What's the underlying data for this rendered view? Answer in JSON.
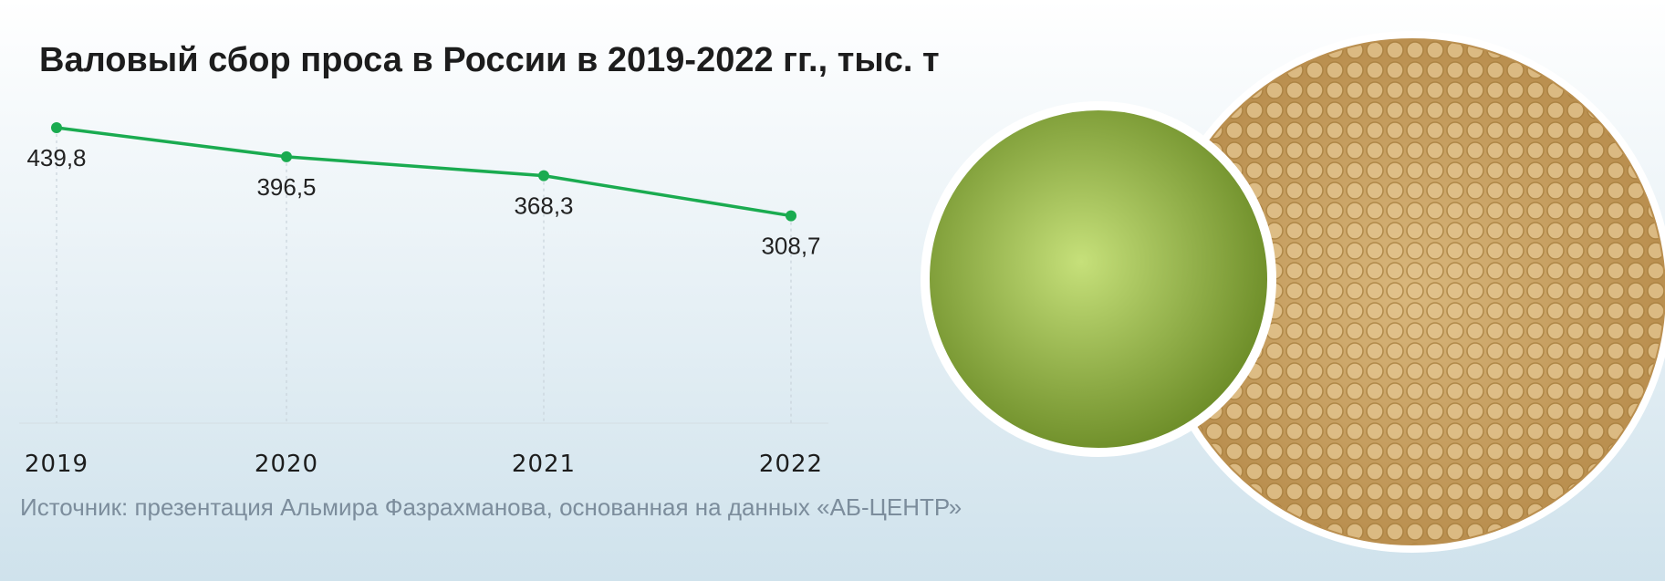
{
  "chart_data": {
    "type": "line",
    "title": "Валовый сбор проса в России в 2019-2022 гг., тыс. т",
    "categories": [
      "2019",
      "2020",
      "2021",
      "2022"
    ],
    "series": [
      {
        "name": null,
        "color": "#1aab50",
        "values": [
          439.8,
          396.5,
          368.3,
          308.7
        ],
        "value_labels": [
          "439,8",
          "396,5",
          "368,3",
          "308,7"
        ]
      }
    ],
    "source": "Источник: презентация Альмира Фазрахманова, основанная на данных «АБ-ЦЕНТР»"
  }
}
